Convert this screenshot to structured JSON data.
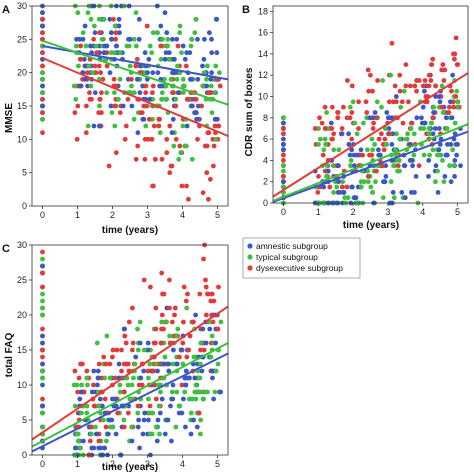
{
  "colors": {
    "amnestic": "#3b57c4",
    "typical": "#3fbf3f",
    "dysexecutive": "#e23a3a",
    "plot_bg": "#ffffff",
    "axis": "#333333"
  },
  "legend": {
    "entries": [
      {
        "label": "amnestic subgroup",
        "color": "#3b57c4"
      },
      {
        "label": "typical subgroup",
        "color": "#3fbf3f"
      },
      {
        "label": "dysexecutive subgroup",
        "color": "#e23a3a"
      }
    ]
  },
  "chart_data": [
    {
      "panel_label": "A",
      "type": "scatter",
      "xlabel": "time (years)",
      "ylabel": "MMSE",
      "xlim": [
        -0.3,
        5.3
      ],
      "ylim": [
        0,
        30
      ],
      "xticks": [
        0,
        1,
        2,
        3,
        4,
        5
      ],
      "yticks": [
        0,
        5,
        10,
        15,
        20,
        25,
        30
      ],
      "fit_lines": [
        {
          "series": "amnestic",
          "x": [
            0,
            5.3
          ],
          "y": [
            24.0,
            19.0
          ]
        },
        {
          "series": "typical",
          "x": [
            0,
            5.3
          ],
          "y": [
            24.8,
            15.2
          ]
        },
        {
          "series": "dysexecutive",
          "x": [
            0,
            5.3
          ],
          "y": [
            22.2,
            10.5
          ]
        }
      ],
      "scatter_summary": {
        "baseline_x": 0,
        "baseline_y_range": [
          11,
          30
        ],
        "followup_x_range": [
          0.9,
          5.1
        ],
        "y_range": [
          0,
          30
        ]
      }
    },
    {
      "panel_label": "B",
      "type": "scatter",
      "xlabel": "time (years)",
      "ylabel": "CDR sum of boxes",
      "xlim": [
        -0.3,
        5.3
      ],
      "ylim": [
        0,
        18.5
      ],
      "xticks": [
        0,
        1,
        2,
        3,
        4,
        5
      ],
      "yticks": [
        0,
        2,
        4,
        6,
        8,
        10,
        12,
        14,
        16,
        18
      ],
      "fit_lines": [
        {
          "series": "amnestic",
          "x": [
            -0.3,
            5.3
          ],
          "y": [
            0.1,
            6.7
          ]
        },
        {
          "series": "typical",
          "x": [
            -0.3,
            5.3
          ],
          "y": [
            0.2,
            7.4
          ]
        },
        {
          "series": "dysexecutive",
          "x": [
            -0.3,
            5.3
          ],
          "y": [
            0.6,
            12.2
          ]
        }
      ],
      "scatter_summary": {
        "baseline_x": 0,
        "baseline_y_range": [
          0,
          8
        ],
        "followup_x_range": [
          0.9,
          5.1
        ],
        "y_range": [
          0,
          18
        ]
      }
    },
    {
      "panel_label": "C",
      "type": "scatter",
      "xlabel": "time (years)",
      "ylabel": "total FAQ",
      "xlim": [
        -0.3,
        5.3
      ],
      "ylim": [
        0,
        30
      ],
      "xticks": [
        0,
        1,
        2,
        3,
        4,
        5
      ],
      "yticks": [
        0,
        5,
        10,
        15,
        20,
        25,
        30
      ],
      "fit_lines": [
        {
          "series": "amnestic",
          "x": [
            -0.3,
            5.3
          ],
          "y": [
            0.5,
            14.5
          ]
        },
        {
          "series": "typical",
          "x": [
            -0.3,
            5.3
          ],
          "y": [
            1.2,
            16.0
          ]
        },
        {
          "series": "dysexecutive",
          "x": [
            -0.3,
            5.3
          ],
          "y": [
            2.2,
            21.2
          ]
        }
      ],
      "scatter_summary": {
        "baseline_x": 0,
        "baseline_y_range": [
          0,
          30
        ],
        "followup_x_range": [
          0.9,
          5.1
        ],
        "y_range": [
          0,
          30
        ]
      }
    }
  ]
}
